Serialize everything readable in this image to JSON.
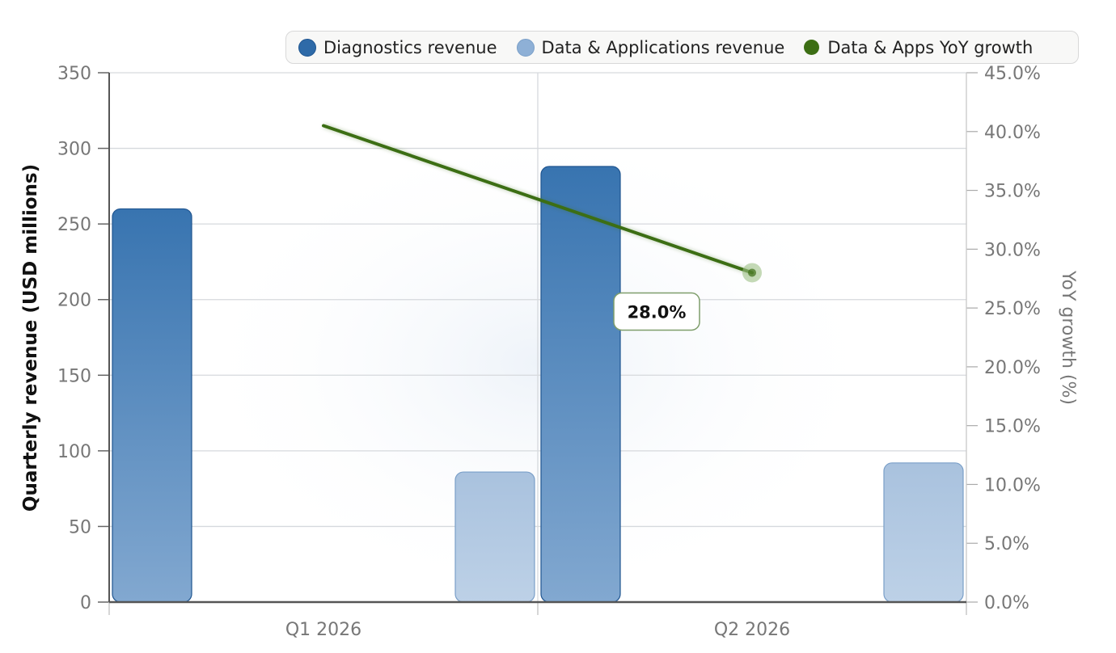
{
  "colors": {
    "diagnostics": "#2e6aa8",
    "data_apps": "#8eb0d6",
    "growth": "#3c6e14"
  },
  "chart_data": {
    "type": "bar",
    "categories": [
      "Q1 2026",
      "Q2 2026"
    ],
    "series": [
      {
        "name": "Diagnostics revenue",
        "kind": "bar",
        "axis": "left",
        "values": [
          260,
          288
        ]
      },
      {
        "name": "Data & Applications revenue",
        "kind": "bar",
        "axis": "left",
        "values": [
          86,
          92
        ]
      },
      {
        "name": "Data & Apps YoY growth",
        "kind": "line",
        "axis": "right",
        "values": [
          40.5,
          28.0
        ]
      }
    ],
    "ylabel": "Quarterly revenue (USD millions)",
    "y2label": "YoY growth (%)",
    "ylim": [
      0,
      350
    ],
    "yticks": [
      "0",
      "50",
      "100",
      "150",
      "200",
      "250",
      "300",
      "350"
    ],
    "y2lim": [
      0,
      45
    ],
    "y2ticks": [
      "0.0%",
      "5.0%",
      "10.0%",
      "15.0%",
      "20.0%",
      "25.0%",
      "30.0%",
      "35.0%",
      "40.0%",
      "45.0%"
    ],
    "annotation": {
      "text": "28.0%",
      "category": "Q2 2026",
      "series": "Data & Apps YoY growth"
    },
    "grid": true,
    "legend": "top"
  }
}
